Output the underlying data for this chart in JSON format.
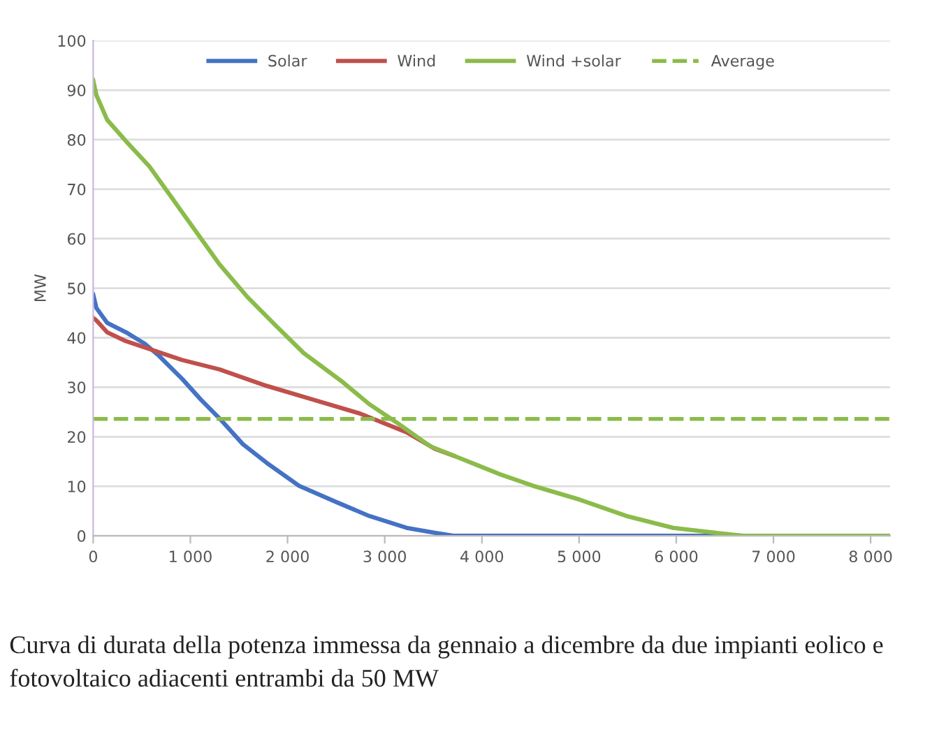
{
  "chart_data": {
    "type": "line",
    "ylabel": "MW",
    "series": [
      {
        "name": "Solar",
        "color": "#4472c4",
        "x": [
          0,
          33,
          144,
          337,
          530,
          674,
          915,
          1108,
          1300,
          1540,
          1781,
          2118,
          2503,
          2840,
          3225,
          3514,
          3707,
          8200
        ],
        "values": [
          48.7,
          46,
          43,
          41.1,
          38.8,
          36.4,
          31.7,
          27.5,
          23.7,
          18.5,
          14.8,
          10.1,
          6.8,
          4.0,
          1.6,
          0.6,
          0,
          0
        ]
      },
      {
        "name": "Wind",
        "color": "#c0504d",
        "x": [
          0,
          33,
          144,
          337,
          626,
          915,
          1300,
          1781,
          2262,
          2744,
          3225,
          3514,
          3707
        ],
        "values": [
          44,
          43.5,
          41.1,
          39.3,
          37.4,
          35.5,
          33.6,
          30.3,
          27.5,
          24.7,
          20.9,
          17.6,
          16.2
        ]
      },
      {
        "name": "Wind +solar",
        "color": "#8bbb4a",
        "x": [
          0,
          33,
          144,
          337,
          578,
          819,
          1059,
          1300,
          1588,
          1877,
          2166,
          2551,
          2840,
          3129,
          3466,
          3707,
          3947,
          4188,
          4525,
          5006,
          5487,
          5969,
          6450,
          6690,
          8200
        ],
        "values": [
          92,
          89,
          84,
          79.7,
          74.6,
          68,
          61.4,
          54.8,
          48.2,
          42.5,
          36.9,
          31.3,
          26.6,
          22.8,
          18.1,
          16.2,
          14.3,
          12.4,
          10.1,
          7.3,
          4.0,
          1.6,
          0.5,
          0,
          0
        ]
      }
    ],
    "ref_lines": [
      {
        "axis": "y",
        "value": 23.6,
        "label": "Average",
        "color": "#8bbb4a",
        "line_style": "dashed"
      }
    ],
    "xlim": [
      0,
      8200
    ],
    "ylim": [
      0,
      100
    ],
    "xticks": [
      0,
      {
        "value": 1000,
        "label": "1 000"
      },
      {
        "value": 2000,
        "label": "2 000"
      },
      {
        "value": 3000,
        "label": "3 000"
      },
      {
        "value": 4000,
        "label": "4 000"
      },
      {
        "value": 5000,
        "label": "5 000"
      },
      {
        "value": 6000,
        "label": "6 000"
      },
      {
        "value": 7000,
        "label": "7 000"
      },
      {
        "value": 8000,
        "label": "8 000"
      }
    ],
    "yticks": [
      0,
      10,
      20,
      30,
      40,
      50,
      60,
      70,
      80,
      90,
      100
    ],
    "grid": "y",
    "legend": "top",
    "annotations": [
      "Curva di durata della potenza immessa da gennaio a dicembre da due impianti eolico e fotovoltaico adiacenti entrambi da 50 MW"
    ]
  }
}
